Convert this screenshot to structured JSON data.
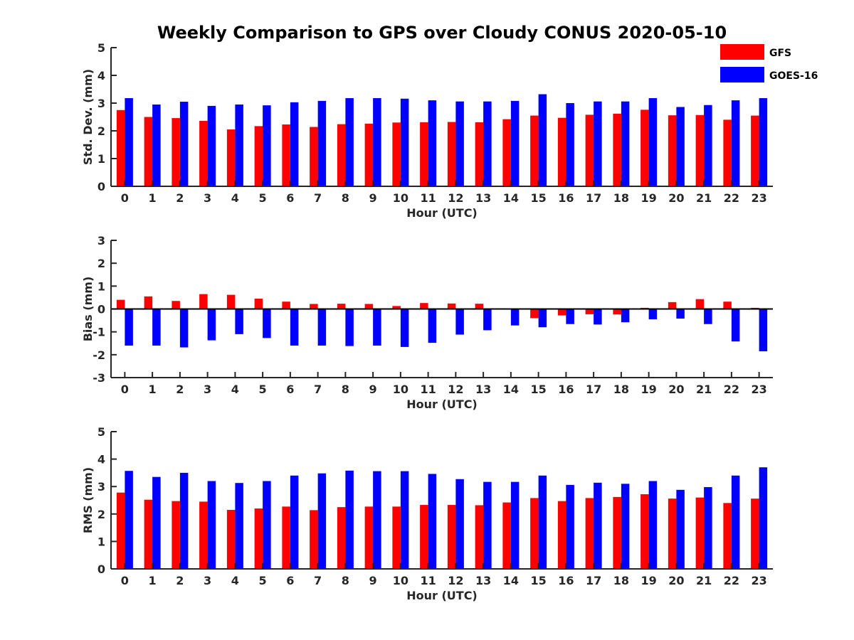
{
  "title": "Weekly Comparison to GPS over Cloudy CONUS 2020-05-10",
  "colors": {
    "GFS": "#ff0000",
    "GOES-16": "#0000ff"
  },
  "legend": {
    "items": [
      "GFS",
      "GOES-16"
    ],
    "position": "top-right"
  },
  "chart_data": [
    {
      "type": "bar",
      "ylabel": "Std. Dev. (mm)",
      "xlabel": "Hour (UTC)",
      "ylim": [
        0,
        5
      ],
      "yticks": [
        0,
        1,
        2,
        3,
        4,
        5
      ],
      "categories": [
        "0",
        "1",
        "2",
        "3",
        "4",
        "5",
        "6",
        "7",
        "8",
        "9",
        "10",
        "11",
        "12",
        "13",
        "14",
        "15",
        "16",
        "17",
        "18",
        "19",
        "20",
        "21",
        "22",
        "23"
      ],
      "series": [
        {
          "name": "GFS",
          "values": [
            2.75,
            2.5,
            2.46,
            2.36,
            2.05,
            2.17,
            2.23,
            2.14,
            2.24,
            2.26,
            2.3,
            2.31,
            2.32,
            2.31,
            2.42,
            2.55,
            2.47,
            2.58,
            2.62,
            2.76,
            2.56,
            2.57,
            2.4,
            2.55
          ]
        },
        {
          "name": "GOES-16",
          "values": [
            3.18,
            2.95,
            3.05,
            2.9,
            2.95,
            2.92,
            3.03,
            3.08,
            3.18,
            3.18,
            3.16,
            3.1,
            3.06,
            3.06,
            3.08,
            3.32,
            3.0,
            3.06,
            3.06,
            3.18,
            2.86,
            2.93,
            3.1,
            3.18
          ]
        }
      ]
    },
    {
      "type": "bar",
      "ylabel": "Bias (mm)",
      "xlabel": "Hour (UTC)",
      "ylim": [
        -3,
        3
      ],
      "yticks": [
        -3,
        -2,
        -1,
        0,
        1,
        2,
        3
      ],
      "categories": [
        "0",
        "1",
        "2",
        "3",
        "4",
        "5",
        "6",
        "7",
        "8",
        "9",
        "10",
        "11",
        "12",
        "13",
        "14",
        "15",
        "16",
        "17",
        "18",
        "19",
        "20",
        "21",
        "22",
        "23"
      ],
      "series": [
        {
          "name": "GFS",
          "values": [
            0.4,
            0.55,
            0.35,
            0.65,
            0.62,
            0.45,
            0.32,
            0.22,
            0.23,
            0.22,
            0.13,
            0.26,
            0.24,
            0.23,
            0.0,
            -0.4,
            -0.28,
            -0.23,
            -0.24,
            0.05,
            0.3,
            0.43,
            0.32,
            0.05
          ]
        },
        {
          "name": "GOES-16",
          "values": [
            -1.6,
            -1.6,
            -1.68,
            -1.37,
            -1.1,
            -1.27,
            -1.6,
            -1.6,
            -1.62,
            -1.6,
            -1.66,
            -1.48,
            -1.12,
            -0.93,
            -0.72,
            -0.8,
            -0.66,
            -0.68,
            -0.58,
            -0.45,
            -0.42,
            -0.66,
            -1.42,
            -1.85
          ]
        }
      ]
    },
    {
      "type": "bar",
      "ylabel": "RMS (mm)",
      "xlabel": "Hour (UTC)",
      "ylim": [
        0,
        5
      ],
      "yticks": [
        0,
        1,
        2,
        3,
        4,
        5
      ],
      "categories": [
        "0",
        "1",
        "2",
        "3",
        "4",
        "5",
        "6",
        "7",
        "8",
        "9",
        "10",
        "11",
        "12",
        "13",
        "14",
        "15",
        "16",
        "17",
        "18",
        "19",
        "20",
        "21",
        "22",
        "23"
      ],
      "series": [
        {
          "name": "GFS",
          "values": [
            2.78,
            2.52,
            2.47,
            2.45,
            2.15,
            2.2,
            2.27,
            2.14,
            2.25,
            2.27,
            2.27,
            2.33,
            2.33,
            2.32,
            2.42,
            2.58,
            2.47,
            2.58,
            2.62,
            2.72,
            2.56,
            2.6,
            2.4,
            2.56
          ]
        },
        {
          "name": "GOES-16",
          "values": [
            3.57,
            3.35,
            3.5,
            3.2,
            3.13,
            3.2,
            3.4,
            3.48,
            3.58,
            3.56,
            3.56,
            3.46,
            3.27,
            3.17,
            3.17,
            3.4,
            3.06,
            3.14,
            3.1,
            3.2,
            2.88,
            2.98,
            3.4,
            3.7
          ]
        }
      ]
    }
  ]
}
